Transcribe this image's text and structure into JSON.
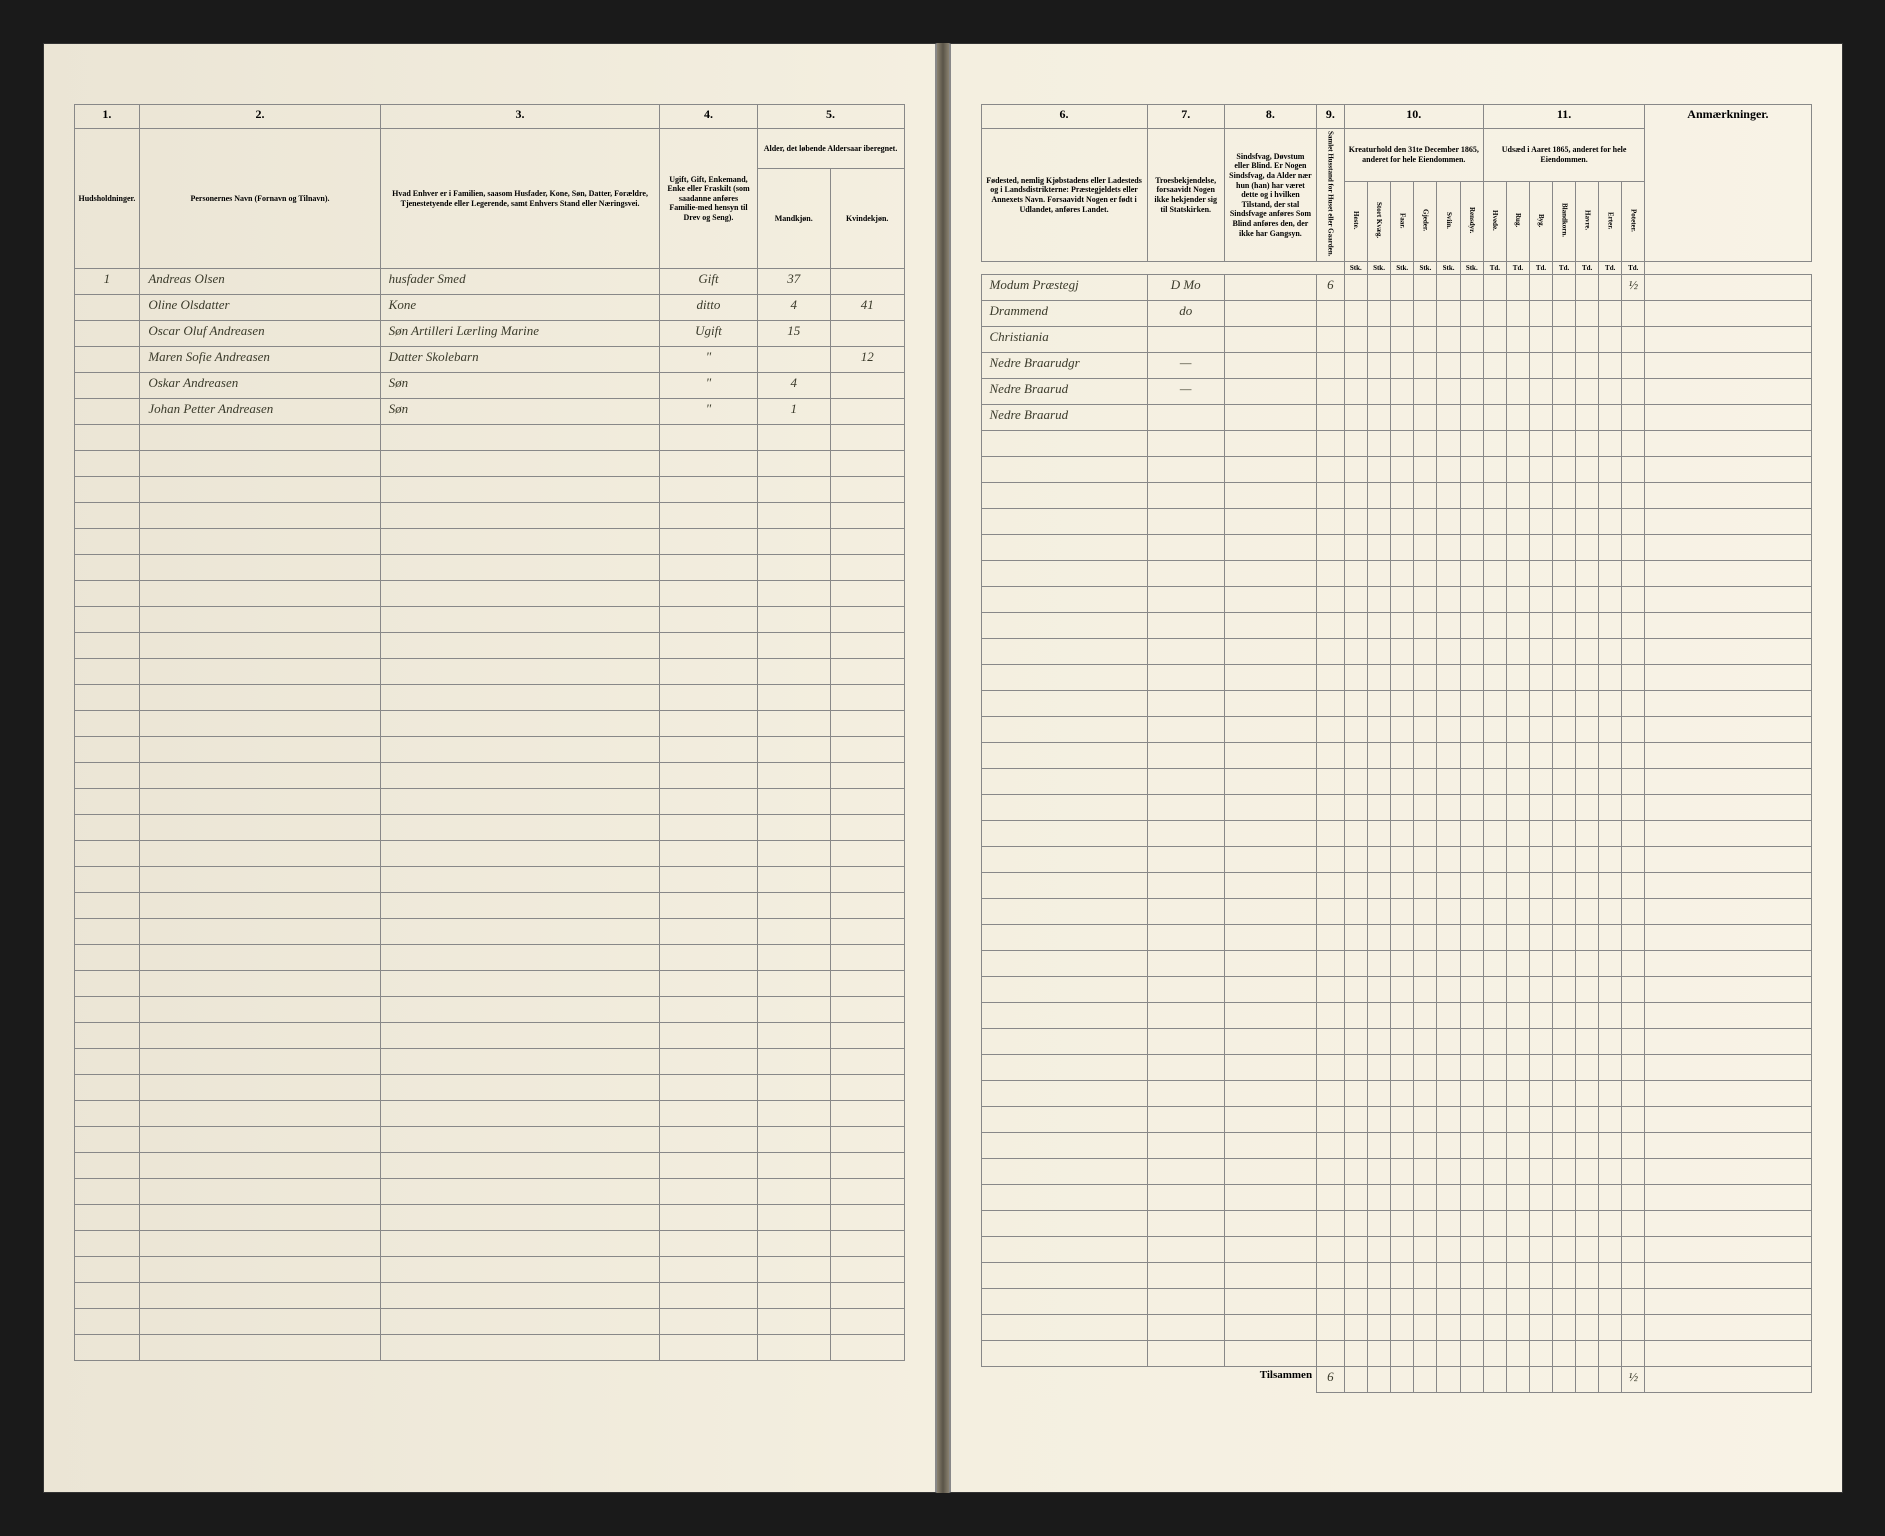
{
  "leftPage": {
    "columnNumbers": [
      "1.",
      "2.",
      "3.",
      "4.",
      "5."
    ],
    "headers": {
      "col1": "Hudsholdninger.",
      "col2": "Personernes Navn (Fornavn og Tilnavn).",
      "col3": "Hvad Enhver er i Familien, saasom Husfader, Kone, Søn, Datter, Forældre, Tjenestetyende eller Legerende, samt Enhvers Stand eller Næringsvei.",
      "col4": "Ugift, Gift, Enkemand, Enke eller Fraskilt (som saadanne anføres Familie-med hensyn til Drev og Seng).",
      "col5": "Alder, det løbende Aldersaar iberegnet.",
      "col5a": "Mandkjøn.",
      "col5b": "Kvindekjøn."
    },
    "rows": [
      {
        "num": "1",
        "name": "Andreas Olsen",
        "role": "husfader Smed",
        "status": "Gift",
        "mAge": "37",
        "fAge": ""
      },
      {
        "num": "",
        "name": "Oline Olsdatter",
        "role": "Kone",
        "status": "ditto",
        "mAge": "4",
        "fAge": "41"
      },
      {
        "num": "",
        "name": "Oscar Oluf Andreasen",
        "role": "Søn Artilleri Lærling Marine",
        "status": "Ugift",
        "mAge": "15",
        "fAge": ""
      },
      {
        "num": "",
        "name": "Maren Sofie Andreasen",
        "role": "Datter Skolebarn",
        "status": "\"",
        "mAge": "",
        "fAge": "12"
      },
      {
        "num": "",
        "name": "Oskar Andreasen",
        "role": "Søn",
        "status": "\"",
        "mAge": "4",
        "fAge": ""
      },
      {
        "num": "",
        "name": "Johan Petter Andreasen",
        "role": "Søn",
        "status": "\"",
        "mAge": "1",
        "fAge": ""
      }
    ],
    "emptyRows": 36
  },
  "rightPage": {
    "columnNumbers": [
      "6.",
      "7.",
      "8.",
      "9.",
      "10.",
      "11."
    ],
    "headers": {
      "col6": "Fødested, nemlig Kjøbstadens eller Ladesteds og i Landsdistrikterne: Præstegjeldets eller Annexets Navn. Forsaavidt Nogen er født i Udlandet, anføres Landet.",
      "col7": "Troesbekjendelse, forsaavidt Nogen ikke hekjender sig til Statskirken.",
      "col8": "Sindsfvag, Døvstum eller Blind. Er Nogen Sindsfvag, da Alder nær hun (han) har været dette og i hvilken Tilstand, der stal Sindsfvage anføres Som Blind anføres den, der ikke har Gangsyn.",
      "col9": "Samlet Husstand for Huset eller Gaarden.",
      "col10": "Kreaturhold den 31te December 1865, anderet for hele Eiendommen.",
      "col10sub": [
        "Heste.",
        "Stort Kvæg.",
        "Faar.",
        "Gjeder.",
        "Sviin.",
        "Rensdyr."
      ],
      "col11": "Udsæd i Aaret 1865, anderet for hele Eiendommen.",
      "col11sub": [
        "Hvede.",
        "Rug.",
        "Byg.",
        "Blandkorn.",
        "Havre.",
        "Erter.",
        "Poteter."
      ],
      "col12": "Anmærkninger."
    },
    "subUnits": {
      "stk": "Stk.",
      "td": "Td."
    },
    "rows": [
      {
        "place": "Modum Præstegj",
        "faith": "D Mo",
        "cond": "",
        "house": "6",
        "livestock": [
          "",
          "",
          "",
          "",
          "",
          ""
        ],
        "seed": [
          "",
          "",
          "",
          "",
          "",
          "",
          "½"
        ],
        "remark": ""
      },
      {
        "place": "Drammend",
        "faith": "do",
        "cond": "",
        "house": "",
        "livestock": [
          "",
          "",
          "",
          "",
          "",
          ""
        ],
        "seed": [
          "",
          "",
          "",
          "",
          "",
          "",
          ""
        ],
        "remark": ""
      },
      {
        "place": "Christiania",
        "faith": "",
        "cond": "",
        "house": "",
        "livestock": [
          "",
          "",
          "",
          "",
          "",
          ""
        ],
        "seed": [
          "",
          "",
          "",
          "",
          "",
          "",
          ""
        ],
        "remark": ""
      },
      {
        "place": "Nedre Braarudgr",
        "faith": "—",
        "cond": "",
        "house": "",
        "livestock": [
          "",
          "",
          "",
          "",
          "",
          ""
        ],
        "seed": [
          "",
          "",
          "",
          "",
          "",
          "",
          ""
        ],
        "remark": ""
      },
      {
        "place": "Nedre Braarud",
        "faith": "—",
        "cond": "",
        "house": "",
        "livestock": [
          "",
          "",
          "",
          "",
          "",
          ""
        ],
        "seed": [
          "",
          "",
          "",
          "",
          "",
          "",
          ""
        ],
        "remark": ""
      },
      {
        "place": "Nedre Braarud",
        "faith": "",
        "cond": "",
        "house": "",
        "livestock": [
          "",
          "",
          "",
          "",
          "",
          ""
        ],
        "seed": [
          "",
          "",
          "",
          "",
          "",
          "",
          ""
        ],
        "remark": ""
      }
    ],
    "emptyRows": 36,
    "totals": {
      "label": "Tilsammen",
      "house": "6",
      "seed6": "½"
    }
  }
}
